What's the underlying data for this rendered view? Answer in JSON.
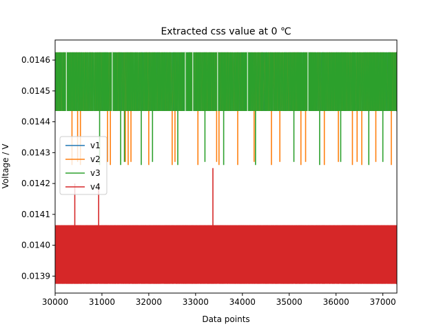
{
  "chart_data": {
    "type": "line",
    "title": "Extracted css value at 0 ℃",
    "xlabel": "Data points",
    "ylabel": "Voltage / V",
    "xlim": [
      30000,
      37300
    ],
    "ylim": [
      0.013845,
      0.014665
    ],
    "x_ticks": [
      30000,
      31000,
      32000,
      33000,
      34000,
      35000,
      36000,
      37000
    ],
    "x_tick_labels": [
      "30000",
      "31000",
      "32000",
      "33000",
      "34000",
      "35000",
      "36000",
      "37000"
    ],
    "y_ticks": [
      0.0139,
      0.014,
      0.0141,
      0.0142,
      0.0143,
      0.0144,
      0.0145,
      0.0146
    ],
    "y_tick_labels": [
      "0.0139",
      "0.0140",
      "0.0141",
      "0.0142",
      "0.0143",
      "0.0144",
      "0.0145",
      "0.0146"
    ],
    "grid": false,
    "legend_position": "center-left",
    "series": [
      {
        "name": "v1",
        "color": "#1f77b4",
        "high": 0.014625,
        "low": 0.014435,
        "spikes": []
      },
      {
        "name": "v2",
        "color": "#ff7f0e",
        "high": 0.014625,
        "low": 0.014435,
        "spikes": [
          {
            "x": 30360,
            "y": 0.01426
          },
          {
            "x": 30480,
            "y": 0.01427
          },
          {
            "x": 30540,
            "y": 0.01426
          },
          {
            "x": 31120,
            "y": 0.01427
          },
          {
            "x": 31180,
            "y": 0.01426
          },
          {
            "x": 31500,
            "y": 0.01427
          },
          {
            "x": 31560,
            "y": 0.01426
          },
          {
            "x": 31620,
            "y": 0.01427
          },
          {
            "x": 32000,
            "y": 0.01426
          },
          {
            "x": 32500,
            "y": 0.01426
          },
          {
            "x": 32560,
            "y": 0.01427
          },
          {
            "x": 33050,
            "y": 0.01426
          },
          {
            "x": 33450,
            "y": 0.01427
          },
          {
            "x": 33500,
            "y": 0.01426
          },
          {
            "x": 33900,
            "y": 0.01426
          },
          {
            "x": 34250,
            "y": 0.01427
          },
          {
            "x": 34620,
            "y": 0.01426
          },
          {
            "x": 34800,
            "y": 0.01427
          },
          {
            "x": 35250,
            "y": 0.01426
          },
          {
            "x": 35350,
            "y": 0.01427
          },
          {
            "x": 35750,
            "y": 0.01426
          },
          {
            "x": 36050,
            "y": 0.01427
          },
          {
            "x": 36350,
            "y": 0.01426
          },
          {
            "x": 36450,
            "y": 0.01427
          },
          {
            "x": 36550,
            "y": 0.01426
          },
          {
            "x": 36850,
            "y": 0.01427
          },
          {
            "x": 37180,
            "y": 0.01426
          }
        ]
      },
      {
        "name": "v3",
        "color": "#2ca02c",
        "high": 0.014625,
        "low": 0.014435,
        "spikes": [
          {
            "x": 30950,
            "y": 0.01426
          },
          {
            "x": 31400,
            "y": 0.01426
          },
          {
            "x": 31480,
            "y": 0.01427
          },
          {
            "x": 31840,
            "y": 0.01426
          },
          {
            "x": 32080,
            "y": 0.01427
          },
          {
            "x": 32620,
            "y": 0.01426
          },
          {
            "x": 33200,
            "y": 0.01427
          },
          {
            "x": 33600,
            "y": 0.01426
          },
          {
            "x": 34280,
            "y": 0.01426
          },
          {
            "x": 35100,
            "y": 0.01427
          },
          {
            "x": 35650,
            "y": 0.01426
          },
          {
            "x": 36100,
            "y": 0.01427
          },
          {
            "x": 36700,
            "y": 0.01426
          },
          {
            "x": 37000,
            "y": 0.01427
          }
        ]
      },
      {
        "name": "v4",
        "color": "#d62728",
        "high": 0.014065,
        "low": 0.013875,
        "spikes": [
          {
            "x": 30420,
            "y": 0.0142
          },
          {
            "x": 30930,
            "y": 0.0142
          },
          {
            "x": 33370,
            "y": 0.01425
          }
        ]
      }
    ]
  }
}
